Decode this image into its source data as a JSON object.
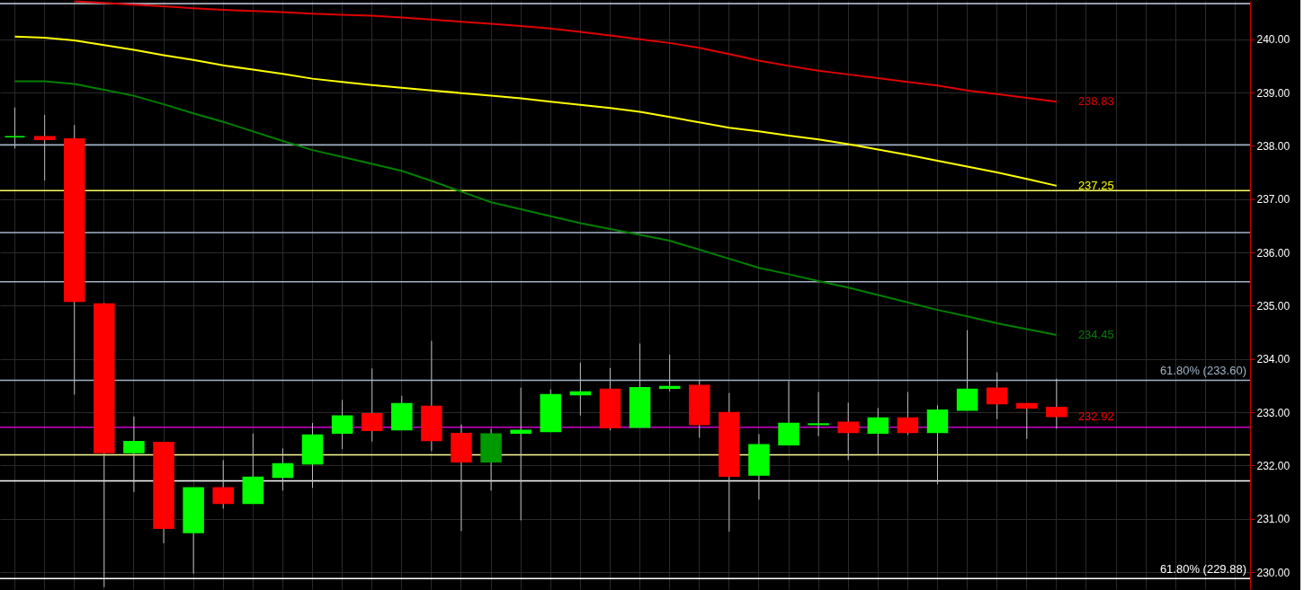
{
  "chart_data": {
    "type": "candlestick",
    "categories": [
      null,
      null,
      null,
      null,
      null,
      null,
      null,
      null,
      null,
      null,
      null,
      null,
      null,
      null,
      null,
      null,
      null,
      null,
      null,
      null,
      null,
      null,
      null,
      null,
      null,
      null,
      null,
      null,
      null,
      null,
      null,
      null,
      null,
      null,
      null,
      null
    ],
    "ohlc": [
      [
        238.17,
        238.72,
        237.95,
        238.17
      ],
      [
        238.17,
        238.58,
        237.35,
        238.12
      ],
      [
        238.13,
        238.39,
        233.33,
        235.08
      ],
      [
        235.03,
        235.05,
        229.72,
        232.24
      ],
      [
        232.24,
        232.92,
        231.5,
        232.45
      ],
      [
        232.43,
        232.43,
        230.54,
        230.82
      ],
      [
        230.74,
        231.58,
        229.97,
        231.58
      ],
      [
        231.58,
        232.1,
        231.19,
        231.29
      ],
      [
        231.29,
        232.6,
        231.29,
        231.78
      ],
      [
        231.78,
        232.32,
        231.53,
        232.03
      ],
      [
        232.03,
        232.8,
        231.58,
        232.57
      ],
      [
        232.61,
        233.23,
        232.31,
        232.93
      ],
      [
        232.97,
        233.82,
        232.45,
        232.66
      ],
      [
        232.67,
        233.31,
        232.67,
        233.16
      ],
      [
        233.11,
        234.34,
        232.27,
        232.47
      ],
      [
        232.6,
        232.77,
        230.77,
        232.07
      ],
      [
        232.07,
        232.69,
        231.53,
        232.59
      ],
      [
        232.61,
        233.46,
        230.97,
        232.66
      ],
      [
        232.64,
        233.43,
        232.64,
        233.33
      ],
      [
        233.33,
        233.93,
        232.94,
        233.38
      ],
      [
        233.43,
        233.83,
        232.66,
        232.71
      ],
      [
        232.72,
        234.29,
        232.72,
        233.46
      ],
      [
        233.45,
        234.08,
        233.39,
        233.48
      ],
      [
        233.5,
        233.61,
        232.52,
        232.77
      ],
      [
        232.99,
        233.36,
        230.76,
        231.8
      ],
      [
        231.82,
        232.59,
        231.36,
        232.39
      ],
      [
        232.39,
        233.58,
        232.39,
        232.79
      ],
      [
        232.77,
        233.38,
        232.55,
        232.78
      ],
      [
        232.81,
        233.18,
        232.1,
        232.62
      ],
      [
        232.61,
        233.08,
        232.2,
        232.89
      ],
      [
        232.89,
        233.38,
        232.57,
        232.62
      ],
      [
        232.62,
        233.13,
        231.65,
        233.04
      ],
      [
        233.04,
        234.54,
        233.04,
        233.43
      ],
      [
        233.45,
        233.75,
        232.87,
        233.16
      ],
      [
        233.16,
        233.16,
        232.5,
        233.08
      ],
      [
        233.09,
        233.63,
        232.69,
        232.92
      ]
    ],
    "colors": [
      "#00ff00",
      "#ff0000",
      "#ff0000",
      "#ff0000",
      "#00ff00",
      "#ff0000",
      "#00ff00",
      "#ff0000",
      "#00ff00",
      "#00ff00",
      "#00ff00",
      "#00ff00",
      "#ff0000",
      "#00ff00",
      "#ff0000",
      "#ff0000",
      "#009900",
      "#00ff00",
      "#00ff00",
      "#00ff00",
      "#ff0000",
      "#00ff00",
      "#00ff00",
      "#ff0000",
      "#ff0000",
      "#00ff00",
      "#00ff00",
      "#00ff00",
      "#ff0000",
      "#00ff00",
      "#ff0000",
      "#00ff00",
      "#00ff00",
      "#ff0000",
      "#ff0000",
      "#ff0000"
    ],
    "series": [
      {
        "type": "line",
        "color": "#e00000",
        "values": [
          null,
          null,
          240.71,
          240.68,
          240.65,
          240.62,
          240.58,
          240.55,
          240.53,
          240.51,
          240.48,
          240.46,
          240.44,
          240.41,
          240.37,
          240.33,
          240.29,
          240.25,
          240.2,
          240.14,
          240.07,
          240.0,
          239.93,
          239.84,
          239.72,
          239.6,
          239.5,
          239.41,
          239.34,
          239.27,
          239.2,
          239.13,
          239.04,
          238.97,
          238.9,
          238.83
        ],
        "value_labels": [
          null,
          null,
          null,
          null,
          null,
          null,
          null,
          null,
          null,
          null,
          null,
          null,
          null,
          null,
          null,
          null,
          null,
          null,
          null,
          null,
          null,
          null,
          null,
          null,
          null,
          null,
          null,
          null,
          null,
          null,
          null,
          null,
          null,
          null,
          null,
          "238.83"
        ]
      },
      {
        "type": "line",
        "color": "#ffff00",
        "values": [
          240.05,
          240.03,
          239.98,
          239.89,
          239.8,
          239.7,
          239.61,
          239.51,
          239.43,
          239.35,
          239.26,
          239.2,
          239.14,
          239.09,
          239.04,
          238.99,
          238.94,
          238.89,
          238.83,
          238.77,
          238.71,
          238.64,
          238.54,
          238.44,
          238.34,
          238.27,
          238.19,
          238.12,
          238.03,
          237.93,
          237.83,
          237.72,
          237.61,
          237.5,
          237.38,
          237.25
        ],
        "value_labels": [
          null,
          null,
          null,
          null,
          null,
          null,
          null,
          null,
          null,
          null,
          null,
          null,
          null,
          null,
          null,
          null,
          null,
          null,
          null,
          null,
          null,
          null,
          null,
          null,
          null,
          null,
          null,
          null,
          null,
          null,
          null,
          null,
          null,
          null,
          null,
          "237.25"
        ]
      },
      {
        "type": "line",
        "color": "#008000",
        "values": [
          239.21,
          239.21,
          239.16,
          239.05,
          238.94,
          238.78,
          238.61,
          238.45,
          238.27,
          238.09,
          237.92,
          237.79,
          237.66,
          237.53,
          237.34,
          237.14,
          236.94,
          236.81,
          236.68,
          236.55,
          236.44,
          236.33,
          236.22,
          236.05,
          235.88,
          235.71,
          235.59,
          235.46,
          235.34,
          235.2,
          235.06,
          234.92,
          234.8,
          234.67,
          234.56,
          234.45
        ],
        "value_labels": [
          null,
          null,
          null,
          null,
          null,
          null,
          null,
          null,
          null,
          null,
          null,
          null,
          null,
          null,
          null,
          null,
          null,
          null,
          null,
          null,
          null,
          null,
          null,
          null,
          null,
          null,
          null,
          null,
          null,
          null,
          null,
          null,
          null,
          null,
          null,
          "234.45"
        ]
      }
    ],
    "ylim": [
      229.68,
      240.72
    ],
    "yticks": [
      {
        "value": 230,
        "label": "230.00"
      },
      {
        "value": 231,
        "label": "231.00"
      },
      {
        "value": 232,
        "label": "232.00"
      },
      {
        "value": 233,
        "label": "233.00"
      },
      {
        "value": 234,
        "label": "234.00"
      },
      {
        "value": 235,
        "label": "235.00"
      },
      {
        "value": 236,
        "label": "236.00"
      },
      {
        "value": 237,
        "label": "237.00"
      },
      {
        "value": 238,
        "label": "238.00"
      },
      {
        "value": 239,
        "label": "239.00"
      },
      {
        "value": 240,
        "label": "240.00"
      }
    ],
    "ref_lines": [
      {
        "axis": "y",
        "value": 240.67,
        "color": "#c8d0e0"
      },
      {
        "axis": "y",
        "value": 238.02,
        "color": "#a0b4c8"
      },
      {
        "axis": "y",
        "value": 237.16,
        "color": "#ffff66"
      },
      {
        "axis": "y",
        "value": 236.37,
        "color": "#a0b4c8"
      },
      {
        "axis": "y",
        "value": 235.45,
        "color": "#a0b4c8"
      },
      {
        "axis": "y",
        "value": 233.6,
        "label": "61.80% (233.60)",
        "color": "#a0b4c8"
      },
      {
        "axis": "y",
        "value": 232.72,
        "color": "#cc00cc"
      },
      {
        "axis": "y",
        "value": 232.2,
        "color": "#ffff99"
      },
      {
        "axis": "y",
        "value": 231.71,
        "color": "#ffffff"
      },
      {
        "axis": "y",
        "value": 229.88,
        "label": "61.80% (229.88)",
        "color": "#ffffff"
      }
    ],
    "annotations": [
      "232.92"
    ],
    "grid": true,
    "tick_labels": "y"
  }
}
